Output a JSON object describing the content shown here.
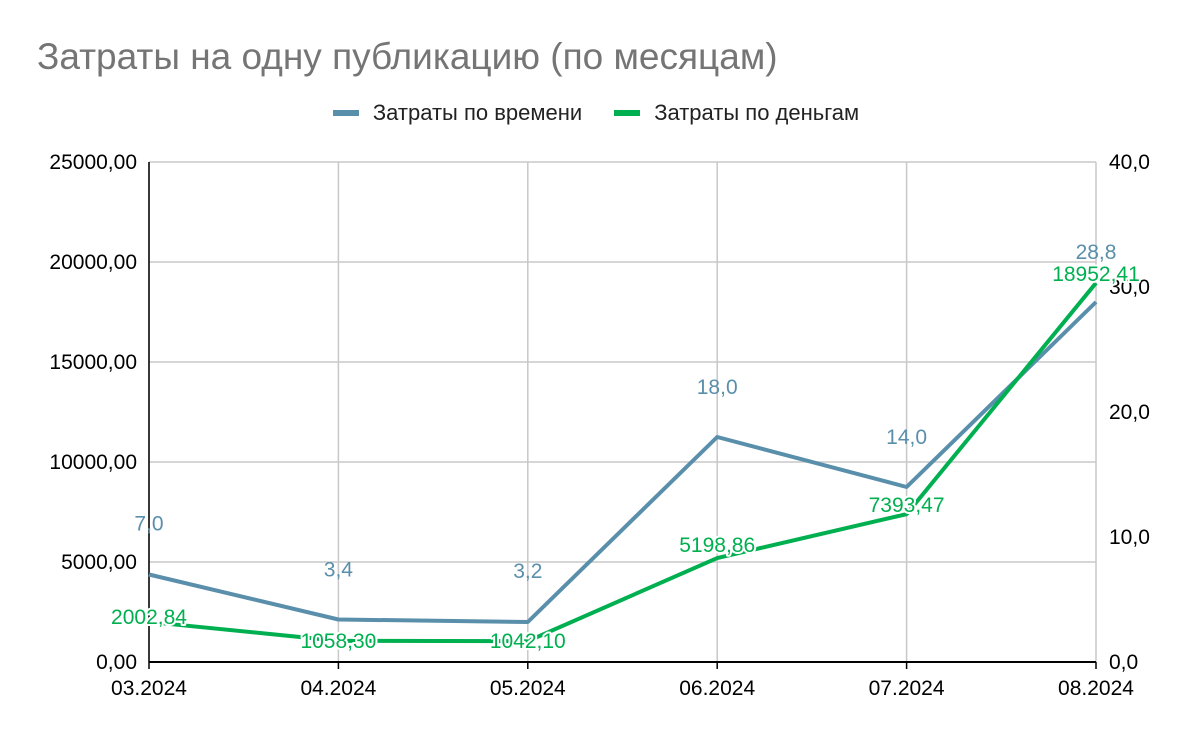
{
  "title": "Затраты на одну публикацию (по месяцам)",
  "legend": {
    "time_label": "Затраты по времени",
    "money_label": "Затраты по деньгам"
  },
  "colors": {
    "time": "#5a8fab",
    "money": "#00b050",
    "grid": "#c8c8c8",
    "axis": "#000000",
    "title": "#757575"
  },
  "chart_data": {
    "type": "line",
    "categories": [
      "03.2024",
      "04.2024",
      "05.2024",
      "06.2024",
      "07.2024",
      "08.2024"
    ],
    "y_left": {
      "ylim": [
        0,
        25000
      ],
      "ticks": [
        "0,00",
        "5000,00",
        "10000,00",
        "15000,00",
        "20000,00",
        "25000,00"
      ]
    },
    "y_right": {
      "ylim": [
        0,
        40
      ],
      "ticks": [
        "0,0",
        "10,0",
        "20,0",
        "30,0",
        "40,0"
      ]
    },
    "grid": true,
    "legend_position": "top",
    "series": [
      {
        "name": "Затраты по времени",
        "axis": "right",
        "values": [
          7.0,
          3.4,
          3.2,
          18.0,
          14.0,
          28.8
        ],
        "labels": [
          "7,0",
          "3,4",
          "3,2",
          "18,0",
          "14,0",
          "28,8"
        ]
      },
      {
        "name": "Затраты по деньгам",
        "axis": "left",
        "values": [
          2002.84,
          1058.3,
          1042.1,
          5198.86,
          7393.47,
          18952.41
        ],
        "labels": [
          "2002,84",
          "1058,30",
          "1042,10",
          "5198,86",
          "7393,47",
          "18952,41"
        ]
      }
    ]
  }
}
